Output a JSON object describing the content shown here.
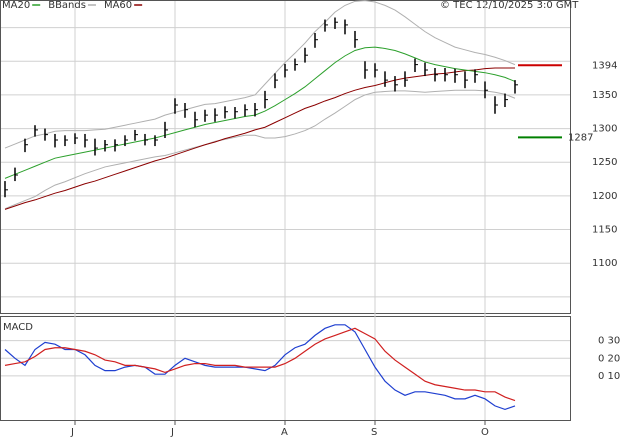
{
  "chart_data": [
    {
      "type": "ohlc",
      "legend": [
        {
          "name": "MA20",
          "color": "#2ca02c"
        },
        {
          "name": "BBands",
          "color": "#b0b0b0"
        },
        {
          "name": "MA60",
          "color": "#8b0000"
        }
      ],
      "copyright": "© TEC 12/10/2025 3:0 GMT",
      "categories": [
        null,
        null,
        null,
        null,
        null,
        null,
        null,
        "J",
        null,
        null,
        null,
        null,
        null,
        null,
        null,
        null,
        null,
        "J",
        null,
        null,
        null,
        null,
        null,
        null,
        null,
        null,
        null,
        null,
        "A",
        null,
        null,
        null,
        null,
        null,
        null,
        null,
        null,
        "S",
        null,
        null,
        null,
        null,
        null,
        null,
        null,
        null,
        null,
        null,
        "O",
        null,
        null,
        null
      ],
      "high": [
        1222,
        1242,
        1285,
        1305,
        1300,
        1292,
        1290,
        1293,
        1292,
        1285,
        1283,
        1284,
        1290,
        1298,
        1292,
        1290,
        1310,
        1345,
        1338,
        1325,
        1328,
        1330,
        1333,
        1332,
        1336,
        1338,
        1356,
        1382,
        1396,
        1404,
        1420,
        1442,
        1462,
        1465,
        1462,
        1445,
        1400,
        1397,
        1385,
        1378,
        1385,
        1404,
        1398,
        1390,
        1390,
        1389,
        1385,
        1388,
        1370,
        1348,
        1352,
        1372
      ],
      "low": [
        1198,
        1222,
        1265,
        1288,
        1282,
        1272,
        1274,
        1277,
        1272,
        1260,
        1266,
        1266,
        1274,
        1282,
        1275,
        1274,
        1286,
        1322,
        1316,
        1302,
        1310,
        1310,
        1315,
        1315,
        1318,
        1318,
        1330,
        1360,
        1376,
        1386,
        1398,
        1420,
        1444,
        1448,
        1440,
        1420,
        1374,
        1376,
        1362,
        1355,
        1362,
        1384,
        1378,
        1370,
        1370,
        1368,
        1360,
        1368,
        1345,
        1322,
        1332,
        1352
      ],
      "close": [
        1209,
        1231,
        1276,
        1298,
        1291,
        1283,
        1283,
        1286,
        1283,
        1271,
        1276,
        1276,
        1283,
        1291,
        1283,
        1283,
        1298,
        1335,
        1328,
        1313,
        1320,
        1320,
        1325,
        1325,
        1328,
        1328,
        1343,
        1372,
        1387,
        1395,
        1409,
        1432,
        1454,
        1458,
        1454,
        1432,
        1387,
        1387,
        1372,
        1365,
        1372,
        1395,
        1387,
        1380,
        1380,
        1380,
        1372,
        1380,
        1357,
        1335,
        1343,
        1365
      ],
      "series": [
        {
          "name": "MA20",
          "color": "#2ca02c",
          "values": [
            1226,
            1232,
            1238,
            1244,
            1250,
            1256,
            1259,
            1262,
            1265,
            1268,
            1271,
            1274,
            1277,
            1280,
            1283,
            1286,
            1290,
            1294,
            1298,
            1302,
            1306,
            1309,
            1312,
            1315,
            1318,
            1320,
            1326,
            1334,
            1343,
            1352,
            1362,
            1374,
            1386,
            1398,
            1408,
            1416,
            1420,
            1421,
            1419,
            1416,
            1411,
            1405,
            1399,
            1395,
            1392,
            1389,
            1387,
            1385,
            1383,
            1380,
            1376,
            1370
          ]
        },
        {
          "name": "BBands",
          "color": "#b0b0b0",
          "values": [
            1271,
            1277,
            1283,
            1289,
            1292,
            1296,
            1297,
            1297,
            1297,
            1298,
            1299,
            1302,
            1305,
            1308,
            1311,
            1314,
            1320,
            1324,
            1328,
            1332,
            1336,
            1337,
            1340,
            1343,
            1346,
            1350,
            1366,
            1382,
            1398,
            1412,
            1427,
            1444,
            1458,
            1473,
            1483,
            1489,
            1490,
            1488,
            1483,
            1476,
            1466,
            1455,
            1444,
            1435,
            1428,
            1421,
            1417,
            1413,
            1410,
            1406,
            1401,
            1395
          ]
        },
        {
          "name": "BBands",
          "color": "#b0b0b0",
          "values": [
            1181,
            1187,
            1193,
            1199,
            1208,
            1216,
            1221,
            1227,
            1233,
            1238,
            1243,
            1246,
            1249,
            1252,
            1255,
            1258,
            1260,
            1264,
            1268,
            1272,
            1276,
            1281,
            1284,
            1287,
            1290,
            1290,
            1286,
            1286,
            1288,
            1292,
            1297,
            1304,
            1314,
            1323,
            1333,
            1343,
            1350,
            1354,
            1355,
            1356,
            1356,
            1355,
            1354,
            1355,
            1356,
            1357,
            1357,
            1357,
            1356,
            1354,
            1351,
            1345
          ]
        },
        {
          "name": "MA60",
          "color": "#8b0000",
          "values": [
            1180,
            1185,
            1190,
            1194,
            1199,
            1204,
            1208,
            1213,
            1218,
            1222,
            1227,
            1232,
            1237,
            1242,
            1247,
            1252,
            1256,
            1261,
            1266,
            1271,
            1276,
            1280,
            1285,
            1289,
            1293,
            1298,
            1302,
            1309,
            1316,
            1323,
            1330,
            1335,
            1341,
            1346,
            1352,
            1357,
            1361,
            1364,
            1368,
            1372,
            1375,
            1377,
            1379,
            1381,
            1382,
            1384,
            1386,
            1387,
            1389,
            1390,
            1390,
            1390
          ]
        }
      ],
      "levels": [
        {
          "value": 1394,
          "color": "#cc0000"
        },
        {
          "value": 1287,
          "color": "#008000"
        }
      ],
      "ylim": [
        1026,
        1491
      ],
      "yticks": [
        1100,
        1150,
        1200,
        1250,
        1300,
        1350
      ],
      "grid_lines": [
        1050,
        1100,
        1150,
        1200,
        1250,
        1300,
        1350,
        1400,
        1450
      ]
    },
    {
      "type": "line",
      "title": "MACD",
      "series": [
        {
          "color": "#1f3fd0",
          "values": [
            25,
            20,
            16,
            25,
            29,
            28,
            25,
            25,
            22,
            16,
            13,
            13,
            15,
            16,
            15,
            11,
            11,
            16,
            20,
            18,
            16,
            15,
            15,
            15,
            15,
            14,
            13,
            16,
            22,
            26,
            28,
            33,
            37,
            39,
            39,
            35,
            25,
            15,
            7,
            2,
            -1,
            1,
            1,
            0,
            -1,
            -3,
            -3,
            -1,
            -3,
            -7,
            -9,
            -7
          ]
        },
        {
          "color": "#d02020",
          "values": [
            16,
            17,
            18,
            21,
            25,
            26,
            26,
            25,
            24,
            22,
            19,
            18,
            16,
            16,
            15,
            14,
            12,
            14,
            16,
            17,
            17,
            16,
            16,
            16,
            15,
            15,
            15,
            15,
            17,
            20,
            24,
            28,
            31,
            33,
            35,
            37,
            34,
            31,
            24,
            19,
            15,
            11,
            7,
            5,
            4,
            3,
            2,
            2,
            1,
            1,
            -2,
            -4
          ]
        }
      ],
      "ylim": [
        -15,
        44
      ],
      "yticks": [
        {
          "value": 30,
          "label": "0 30"
        },
        {
          "value": 20,
          "label": "0 20"
        },
        {
          "value": 10,
          "label": "0 10"
        }
      ]
    }
  ]
}
